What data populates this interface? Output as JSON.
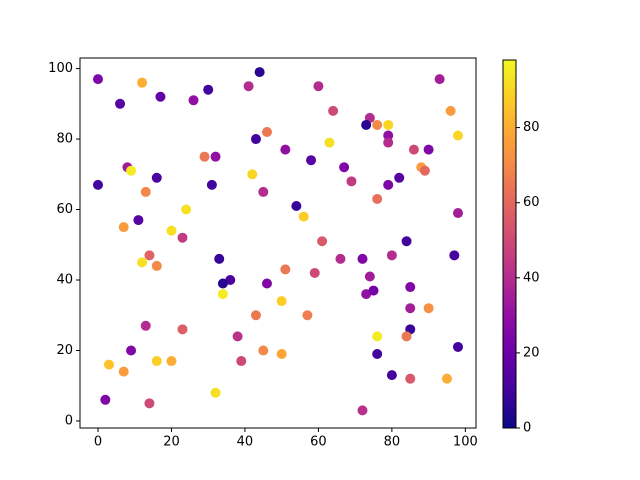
{
  "chart_data": {
    "type": "scatter",
    "x": [
      0,
      6,
      12,
      17,
      26,
      30,
      44,
      41,
      60,
      64,
      74,
      76,
      73,
      79,
      93,
      96,
      98,
      46,
      43,
      29,
      32,
      51,
      63,
      58,
      67,
      79,
      79,
      86,
      90,
      8,
      9,
      16,
      42,
      69,
      79,
      82,
      88,
      89,
      0,
      13,
      31,
      45,
      76,
      54,
      24,
      98,
      11,
      56,
      7,
      20,
      23,
      61,
      84,
      14,
      80,
      97,
      33,
      66,
      72,
      12,
      16,
      51,
      59,
      74,
      36,
      34,
      46,
      85,
      73,
      75,
      34,
      50,
      90,
      85,
      43,
      57,
      13,
      23,
      85,
      38,
      76,
      84,
      9,
      45,
      50,
      76,
      39,
      16,
      20,
      3,
      7,
      80,
      95,
      85,
      32,
      2,
      14,
      72,
      98
    ],
    "values": [
      97,
      90,
      96,
      92,
      91,
      94,
      99,
      95,
      95,
      88,
      86,
      84,
      84,
      84,
      97,
      88,
      81,
      82,
      80,
      75,
      75,
      77,
      79,
      74,
      72,
      81,
      79,
      77,
      77,
      72,
      71,
      69,
      70,
      68,
      67,
      69,
      72,
      71,
      67,
      65,
      67,
      65,
      63,
      61,
      60,
      59,
      57,
      58,
      55,
      54,
      52,
      51,
      51,
      47,
      47,
      47,
      46,
      46,
      46,
      45,
      44,
      43,
      42,
      41,
      40,
      39,
      39,
      38,
      36,
      37,
      36,
      34,
      32,
      32,
      30,
      30,
      27,
      26,
      26,
      24,
      24,
      24,
      20,
      20,
      19,
      19,
      17,
      17,
      17,
      16,
      14,
      13,
      12,
      12,
      8,
      6,
      5,
      3,
      21
    ],
    "c": [
      25,
      15,
      80,
      18,
      30,
      10,
      5,
      40,
      40,
      50,
      40,
      70,
      5,
      90,
      35,
      75,
      90,
      65,
      10,
      65,
      30,
      30,
      92,
      15,
      25,
      30,
      40,
      50,
      25,
      35,
      95,
      12,
      90,
      45,
      25,
      15,
      75,
      60,
      10,
      70,
      10,
      40,
      62,
      8,
      92,
      35,
      15,
      88,
      75,
      92,
      45,
      55,
      10,
      58,
      40,
      12,
      8,
      40,
      25,
      92,
      70,
      65,
      50,
      35,
      12,
      5,
      25,
      25,
      30,
      22,
      95,
      88,
      72,
      35,
      65,
      67,
      40,
      57,
      8,
      42,
      95,
      65,
      25,
      70,
      78,
      10,
      50,
      88,
      80,
      85,
      75,
      10,
      80,
      55,
      92,
      25,
      50,
      42,
      10
    ],
    "colormap": "plasma",
    "clim": [
      0,
      98
    ],
    "cticks": [
      0,
      20,
      40,
      60,
      80
    ],
    "xlim": [
      -4.9,
      102.9
    ],
    "ylim": [
      -2,
      103
    ],
    "xticks": [
      0,
      20,
      40,
      60,
      80,
      100
    ],
    "yticks": [
      0,
      20,
      40,
      60,
      80,
      100
    ]
  }
}
